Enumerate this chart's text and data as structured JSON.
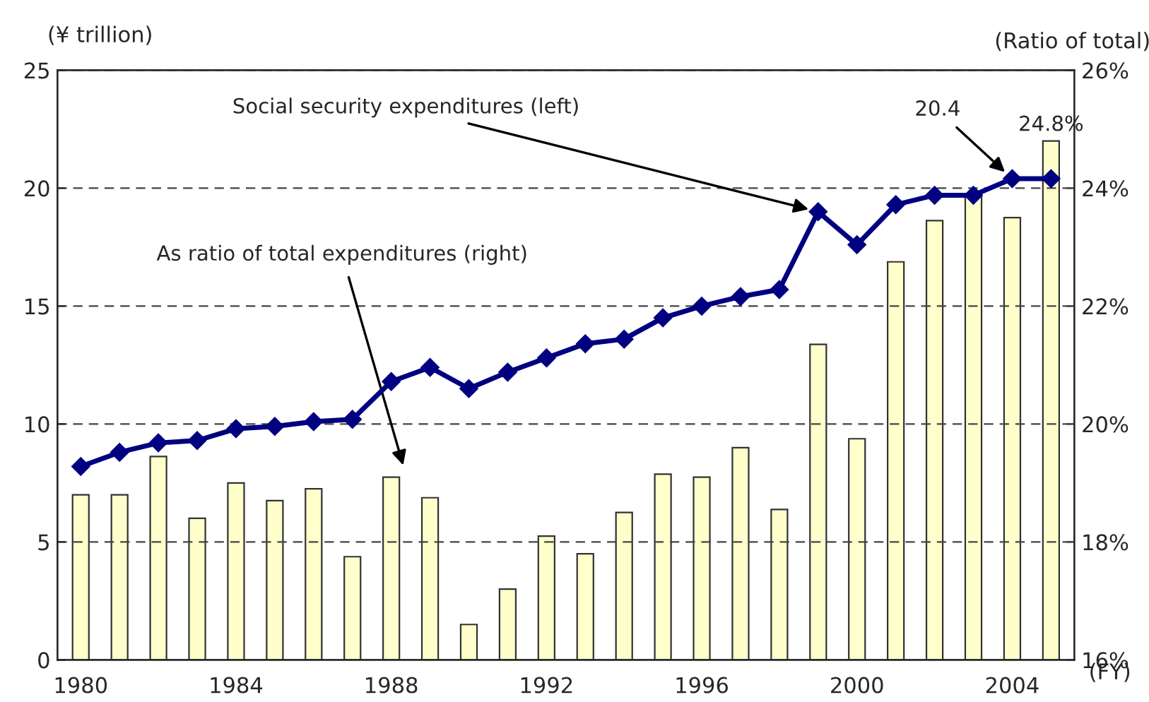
{
  "chart_data": {
    "type": "bar",
    "ylabel": "(¥ trillion)",
    "y2label": "(Ratio of total)",
    "xlabel": "(FY)",
    "x": [
      1980,
      1981,
      1982,
      1983,
      1984,
      1985,
      1986,
      1987,
      1988,
      1989,
      1990,
      1991,
      1992,
      1993,
      1994,
      1995,
      1996,
      1997,
      1998,
      1999,
      2000,
      2001,
      2002,
      2003,
      2004,
      2005
    ],
    "series": [
      {
        "axis": "y2",
        "color": "#ffffcc",
        "values": [
          18.8,
          18.8,
          19.45,
          18.4,
          19.0,
          18.7,
          18.9,
          17.75,
          19.1,
          18.75,
          16.6,
          17.2,
          18.1,
          17.8,
          18.5,
          19.15,
          19.1,
          19.6,
          18.55,
          21.35,
          19.75,
          22.75,
          23.45,
          23.9,
          23.5,
          24.8
        ],
        "value_labels": [
          null,
          null,
          null,
          null,
          null,
          null,
          null,
          null,
          null,
          null,
          null,
          null,
          null,
          null,
          null,
          null,
          null,
          null,
          null,
          null,
          null,
          null,
          null,
          null,
          null,
          "24.8%"
        ]
      },
      {
        "type": "line",
        "axis": "y",
        "color": "#000080",
        "marker": "diamond",
        "line_style": "solid",
        "values": [
          8.2,
          8.8,
          9.2,
          9.3,
          9.8,
          9.9,
          10.1,
          10.2,
          11.8,
          12.4,
          11.5,
          12.2,
          12.8,
          13.4,
          13.6,
          14.5,
          15.0,
          15.4,
          15.7,
          19.0,
          17.6,
          19.3,
          19.7,
          19.7,
          20.4,
          20.4
        ]
      }
    ],
    "xlim": [
      1979.4,
      2005.6
    ],
    "xticks": [
      1980,
      1984,
      1988,
      1992,
      1996,
      2000,
      2004
    ],
    "ylim": [
      0,
      25
    ],
    "yticks": [
      0,
      5,
      10,
      15,
      20,
      25
    ],
    "y2lim": [
      16,
      26
    ],
    "y2ticks": [
      {
        "value": 16,
        "label": "16%"
      },
      {
        "value": 18,
        "label": "18%"
      },
      {
        "value": 20,
        "label": "20%"
      },
      {
        "value": 22,
        "label": "22%"
      },
      {
        "value": 24,
        "label": "24%"
      },
      {
        "value": 26,
        "label": "26%"
      }
    ],
    "grid": "y",
    "annotations": [
      {
        "text": "Social security expenditures (left)",
        "x": 1999,
        "y": 19.0
      },
      "As ratio of total expenditures (right)",
      {
        "text": "20.4",
        "x": 2004,
        "y": 20.4
      }
    ]
  }
}
